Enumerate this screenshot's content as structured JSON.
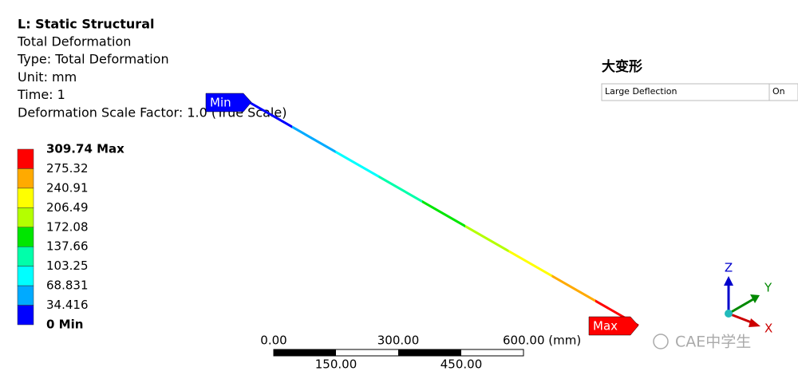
{
  "header": {
    "title": "L: Static Structural",
    "lines": [
      "Total Deformation",
      "Type: Total Deformation",
      "Unit: mm",
      "Time: 1",
      "Deformation Scale Factor: 1.0 (True Scale)"
    ]
  },
  "legend": {
    "labels": [
      "309.74 Max",
      "275.32",
      "240.91",
      "206.49",
      "172.08",
      "137.66",
      "103.25",
      "68.831",
      "34.416",
      "0 Min"
    ],
    "colors": [
      "#ff0000",
      "#ffaa00",
      "#ffff00",
      "#b4ff00",
      "#00e600",
      "#00ffaa",
      "#00ffff",
      "#00aaff",
      "#0000ff"
    ]
  },
  "probes": {
    "min": "Min",
    "max": "Max"
  },
  "side_panel": {
    "title": "大变形",
    "rows": [
      [
        "Large Deflection",
        "On"
      ]
    ]
  },
  "scale_bar": {
    "top_labels": [
      "0.00",
      "300.00",
      "600.00 (mm)"
    ],
    "bottom_labels": [
      "150.00",
      "450.00"
    ]
  },
  "triad": {
    "z": "Z",
    "y": "Y",
    "x": "X"
  },
  "watermark": "CAE中学生"
}
